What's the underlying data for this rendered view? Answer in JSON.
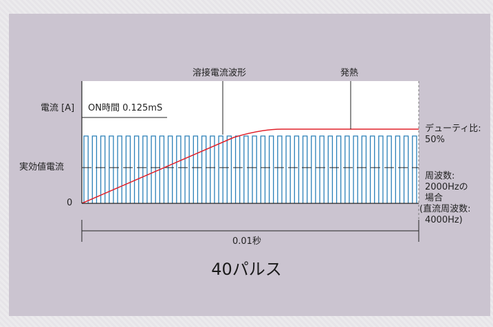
{
  "labels": {
    "welding_waveform": "溶接電流波形",
    "heat": "発熱",
    "current_axis": "電流 [A]",
    "on_time": "ON時間 0.125mS",
    "effective_current": "実効値電流",
    "zero": "0",
    "duty_line1": "デューティ比:",
    "duty_line2": "50%",
    "freq_line1": "周波数:",
    "freq_line2": "2000Hzの",
    "freq_line3": "場合",
    "freq_line4": "(直流周波数:",
    "freq_line5": "4000Hz)",
    "duration": "0.01秒",
    "pulse_count": "40パルス"
  },
  "pulse": {
    "count": 40,
    "duty_fraction": 0.5
  },
  "colors": {
    "pulse_stroke": "#2a7fb8",
    "heat_curve": "#e0202a",
    "axis": "#222222",
    "plot_background": "#ffffff",
    "panel_background": "#cbc4d0"
  }
}
